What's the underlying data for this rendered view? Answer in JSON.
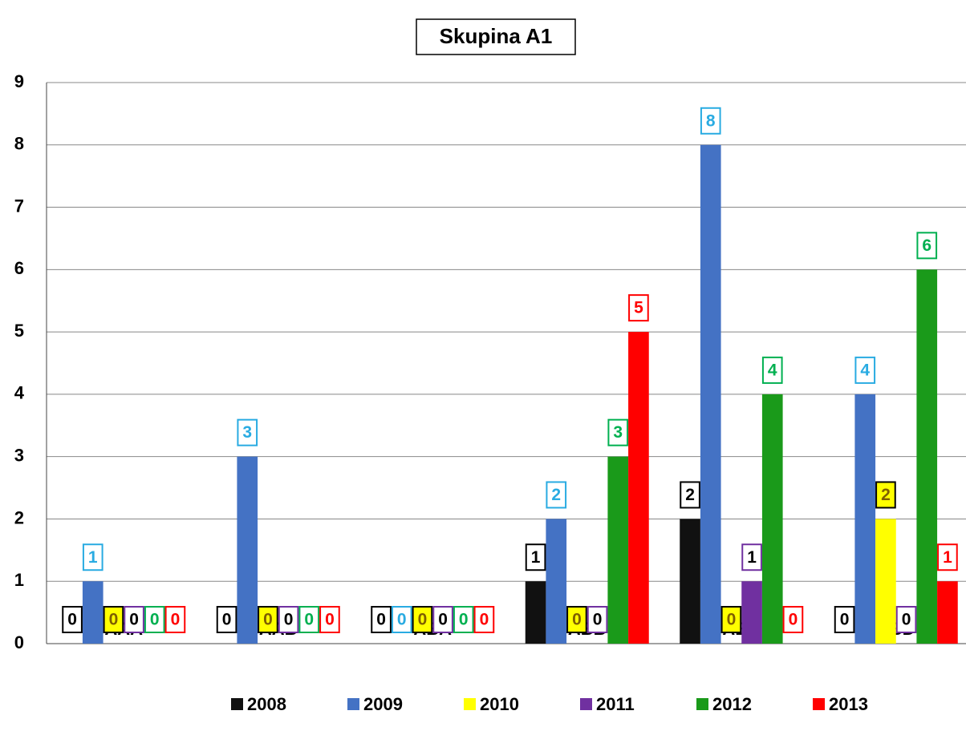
{
  "chart_data": {
    "type": "bar",
    "title": "Skupina A1",
    "categories": [
      "AAA",
      "AAB",
      "ABA",
      "ABB",
      "ABC",
      "ABD"
    ],
    "series": [
      {
        "name": "2008",
        "color": "#111111",
        "values": [
          0,
          0,
          0,
          1,
          2,
          0
        ]
      },
      {
        "name": "2009",
        "color": "#4472c4",
        "values": [
          1,
          3,
          0,
          2,
          8,
          4
        ]
      },
      {
        "name": "2010",
        "color": "#ffff00",
        "values": [
          0,
          0,
          0,
          0,
          0,
          2
        ]
      },
      {
        "name": "2011",
        "color": "#7030a0",
        "values": [
          0,
          0,
          0,
          0,
          1,
          0
        ]
      },
      {
        "name": "2012",
        "color": "#1a9a1a",
        "values": [
          0,
          0,
          0,
          3,
          4,
          6
        ]
      },
      {
        "name": "2013",
        "color": "#ff0000",
        "values": [
          0,
          0,
          0,
          5,
          0,
          1
        ]
      }
    ],
    "ylim": [
      0,
      9
    ],
    "yticks": [
      0,
      1,
      2,
      3,
      4,
      5,
      6,
      7,
      8,
      9
    ],
    "grid": true,
    "legend": "bottom"
  }
}
